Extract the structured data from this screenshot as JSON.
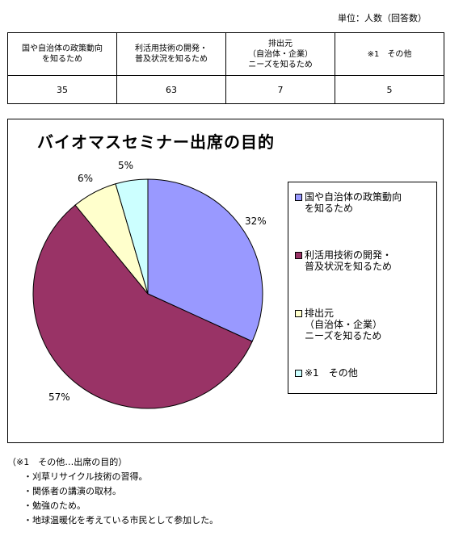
{
  "unit_note": "単位：人数（回答数）",
  "table": {
    "headers": [
      "国や自治体の政策動向\nを知るため",
      "利活用技術の開発・\n普及状況を知るため",
      "排出元\n（自治体・企業）\nニーズを知るため",
      "※1　その他"
    ],
    "values": [
      "35",
      "63",
      "7",
      "5"
    ]
  },
  "chart_data": {
    "type": "pie",
    "title": "バイオマスセミナー出席の目的",
    "categories": [
      "国や自治体の政策動向\nを知るため",
      "利活用技術の開発・\n普及状況を知るため",
      "排出元\n（自治体・企業）\nニーズを知るため",
      "※1　その他"
    ],
    "values": [
      35,
      63,
      7,
      5
    ],
    "percent_labels": [
      "32%",
      "57%",
      "6%",
      "5%"
    ],
    "colors": [
      "#9999ff",
      "#993366",
      "#ffffcc",
      "#ccffff"
    ],
    "legend_position": "right"
  },
  "notes": {
    "heading": "（※1　その他…出席の目的）",
    "items": [
      "刈草リサイクル技術の習得。",
      "関係者の講演の取材。",
      "勉強のため。",
      "地球温暖化を考えている市民として参加した。"
    ],
    "bullet": "・"
  }
}
